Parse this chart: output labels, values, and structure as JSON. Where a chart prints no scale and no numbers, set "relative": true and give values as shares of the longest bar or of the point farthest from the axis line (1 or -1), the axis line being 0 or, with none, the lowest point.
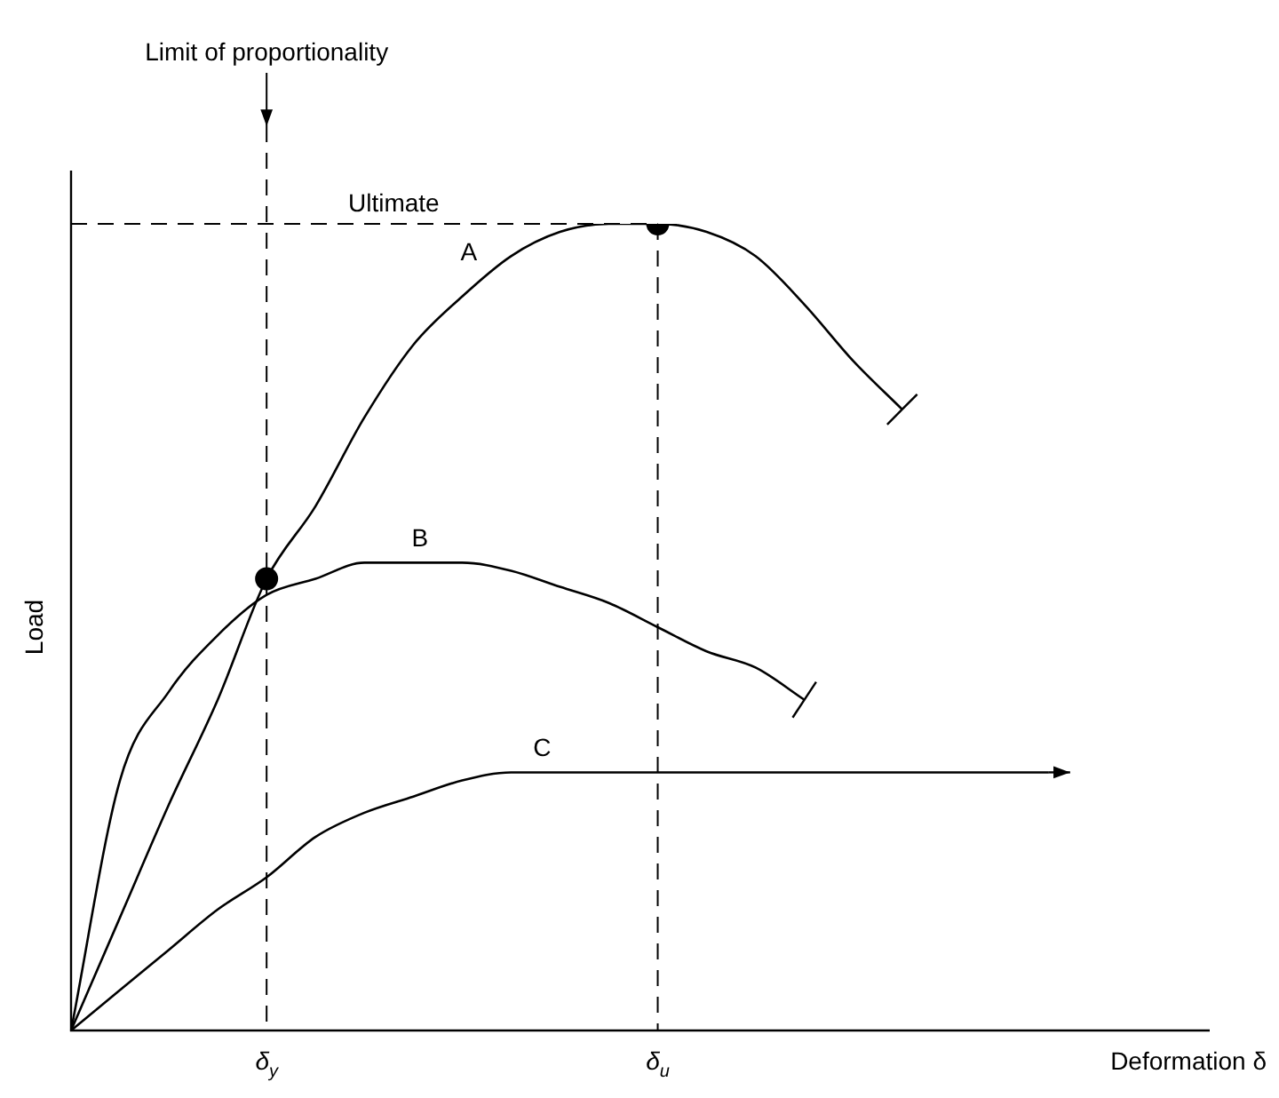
{
  "chart_data": {
    "type": "line",
    "relative": true,
    "xlabel": "Deformation δ",
    "ylabel": "Load",
    "marker": "none",
    "legend": false,
    "categories": [
      null,
      null,
      null,
      null,
      "δ$_{y}$",
      null,
      null,
      null,
      null,
      null,
      null,
      null,
      "δ$_{u}$",
      null,
      null,
      null,
      null,
      null,
      null,
      null,
      null,
      null,
      null,
      null
    ],
    "series": [
      {
        "name": "A",
        "color": "#000000",
        "values": [
          0,
          0.14,
          0.28,
          0.41,
          0.56,
          0.65,
          0.76,
          0.85,
          0.91,
          0.96,
          0.99,
          1.0,
          1.0,
          0.99,
          0.96,
          0.9,
          0.83,
          0.77,
          null,
          null,
          null,
          null,
          null,
          null
        ]
      },
      {
        "name": "B",
        "color": "#000000",
        "values": [
          0,
          0.31,
          0.42,
          0.49,
          0.54,
          0.56,
          0.58,
          0.58,
          0.58,
          0.57,
          0.55,
          0.53,
          0.5,
          0.47,
          0.45,
          0.41,
          null,
          null,
          null,
          null,
          null,
          null,
          null,
          null
        ]
      },
      {
        "name": "C",
        "color": "#000000",
        "values": [
          0,
          0.05,
          0.1,
          0.15,
          0.19,
          0.24,
          0.27,
          0.29,
          0.31,
          0.32,
          0.32,
          0.32,
          0.32,
          0.32,
          0.32,
          0.32,
          0.32,
          0.32,
          0.32,
          0.32,
          0.32,
          null,
          null,
          null
        ]
      },
      {
        "type": "scatter",
        "marker": "circle",
        "color": "#000000",
        "x": [
          "δ$_{y}$",
          "δ$_{u}$"
        ],
        "values": [
          0.56,
          1.0
        ]
      }
    ],
    "ref_lines": [
      {
        "axis": "x",
        "value": "δ$_{y}$",
        "label": "Limit of proportionality",
        "line_style": "dashed"
      },
      {
        "axis": "x",
        "value": "δ$_{u}$",
        "line_style": "dashed"
      },
      {
        "axis": "y",
        "value": 1.0,
        "label": "Ultimate",
        "line_style": "dashed"
      }
    ]
  }
}
